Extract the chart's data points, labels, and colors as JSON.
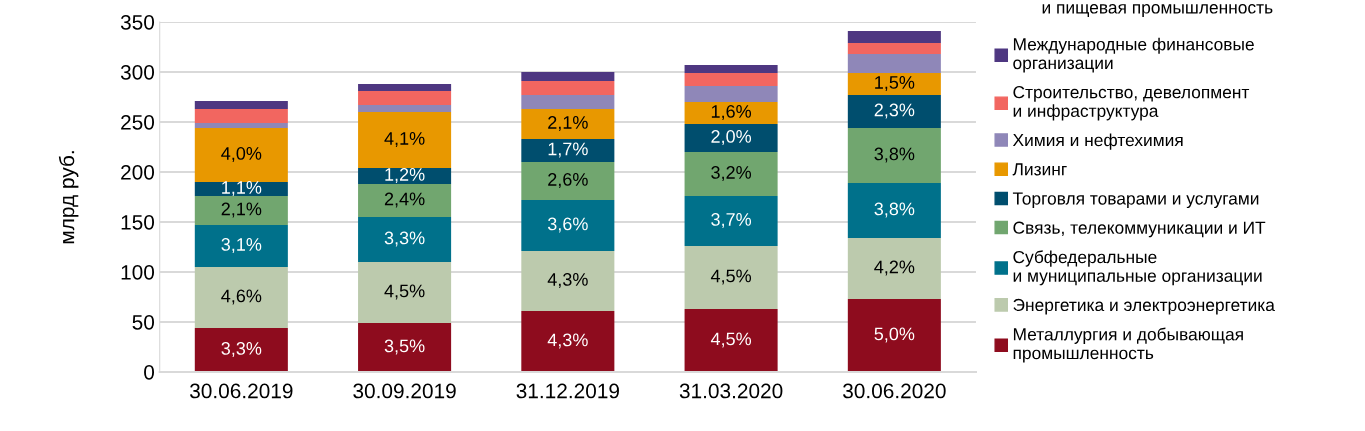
{
  "chart_data": {
    "type": "bar",
    "stacked": true,
    "ylabel": "млрд руб.",
    "categories": [
      "30.06.2019",
      "30.09.2019",
      "31.12.2019",
      "31.03.2020",
      "30.06.2020"
    ],
    "ylim": [
      0,
      350
    ],
    "yticks": [
      0,
      50,
      100,
      150,
      200,
      250,
      300,
      350
    ],
    "grid": "y",
    "legend": "right",
    "series": [
      {
        "name": "Металлургия и добывающая\nпромышленность",
        "color": "#8e0c1e",
        "values": [
          44,
          49,
          61,
          63,
          73
        ]
      },
      {
        "name": "Энергетика и электроэнергетика",
        "color": "#bccaad",
        "values": [
          61,
          61,
          60,
          63,
          61
        ]
      },
      {
        "name": "Субфедеральные\nи муниципальные организации",
        "color": "#00718b",
        "values": [
          42,
          45,
          51,
          50,
          55
        ]
      },
      {
        "name": "Связь, телекоммуникации и ИТ",
        "color": "#71a66f",
        "values": [
          29,
          33,
          38,
          44,
          55
        ]
      },
      {
        "name": "Торговля товарами и услугами",
        "color": "#004e6e",
        "values": [
          14,
          16,
          23,
          28,
          33
        ]
      },
      {
        "name": "Лизинг",
        "color": "#e89800",
        "values": [
          54,
          56,
          30,
          22,
          22
        ]
      },
      {
        "name": "Химия и нефтехимия",
        "color": "#8f87b8",
        "values": [
          5,
          7,
          14,
          16,
          19
        ]
      },
      {
        "name": "Строительство, девелопмент\nи инфраструктура",
        "color": "#f26660",
        "values": [
          14,
          14,
          14,
          13,
          11
        ]
      },
      {
        "name": "Международные финансовые\nорганизации",
        "color": "#4e3781",
        "values": [
          8,
          7,
          9,
          8,
          12
        ]
      }
    ],
    "annotations": [
      "и пищевая промышленность",
      {
        "text": "3,3%",
        "x": "30.06.2019",
        "y": 44
      },
      {
        "text": "3,5%",
        "x": "30.09.2019",
        "y": 49
      },
      {
        "text": "4,3%",
        "x": "31.12.2019",
        "y": 61
      },
      {
        "text": "4,5%",
        "x": "31.03.2020",
        "y": 63
      },
      {
        "text": "5,0%",
        "x": "30.06.2020",
        "y": 73
      },
      {
        "text": "4,6%",
        "x": "30.06.2019",
        "y": 105
      },
      {
        "text": "4,5%",
        "x": "30.09.2019",
        "y": 110
      },
      {
        "text": "4,3%",
        "x": "31.12.2019",
        "y": 121
      },
      {
        "text": "4,5%",
        "x": "31.03.2020",
        "y": 126
      },
      {
        "text": "4,2%",
        "x": "30.06.2020",
        "y": 134
      },
      {
        "text": "3,1%",
        "x": "30.06.2019",
        "y": 147
      },
      {
        "text": "3,3%",
        "x": "30.09.2019",
        "y": 155
      },
      {
        "text": "3,6%",
        "x": "31.12.2019",
        "y": 172
      },
      {
        "text": "3,7%",
        "x": "31.03.2020",
        "y": 176
      },
      {
        "text": "3,8%",
        "x": "30.06.2020",
        "y": 189
      },
      {
        "text": "2,1%",
        "x": "30.06.2019",
        "y": 176
      },
      {
        "text": "2,4%",
        "x": "30.09.2019",
        "y": 188
      },
      {
        "text": "2,6%",
        "x": "31.12.2019",
        "y": 210
      },
      {
        "text": "3,2%",
        "x": "31.03.2020",
        "y": 220
      },
      {
        "text": "3,8%",
        "x": "30.06.2020",
        "y": 244
      },
      {
        "text": "1,1%",
        "x": "30.06.2019",
        "y": 190
      },
      {
        "text": "1,2%",
        "x": "30.09.2019",
        "y": 204
      },
      {
        "text": "1,7%",
        "x": "31.12.2019",
        "y": 233
      },
      {
        "text": "2,0%",
        "x": "31.03.2020",
        "y": 248
      },
      {
        "text": "2,3%",
        "x": "30.06.2020",
        "y": 277
      },
      {
        "text": "4,0%",
        "x": "30.06.2019",
        "y": 244
      },
      {
        "text": "4,1%",
        "x": "30.09.2019",
        "y": 260
      },
      {
        "text": "2,1%",
        "x": "31.12.2019",
        "y": 263
      },
      {
        "text": "1,6%",
        "x": "31.03.2020",
        "y": 270
      },
      {
        "text": "1,5%",
        "x": "30.06.2020",
        "y": 299
      }
    ]
  }
}
